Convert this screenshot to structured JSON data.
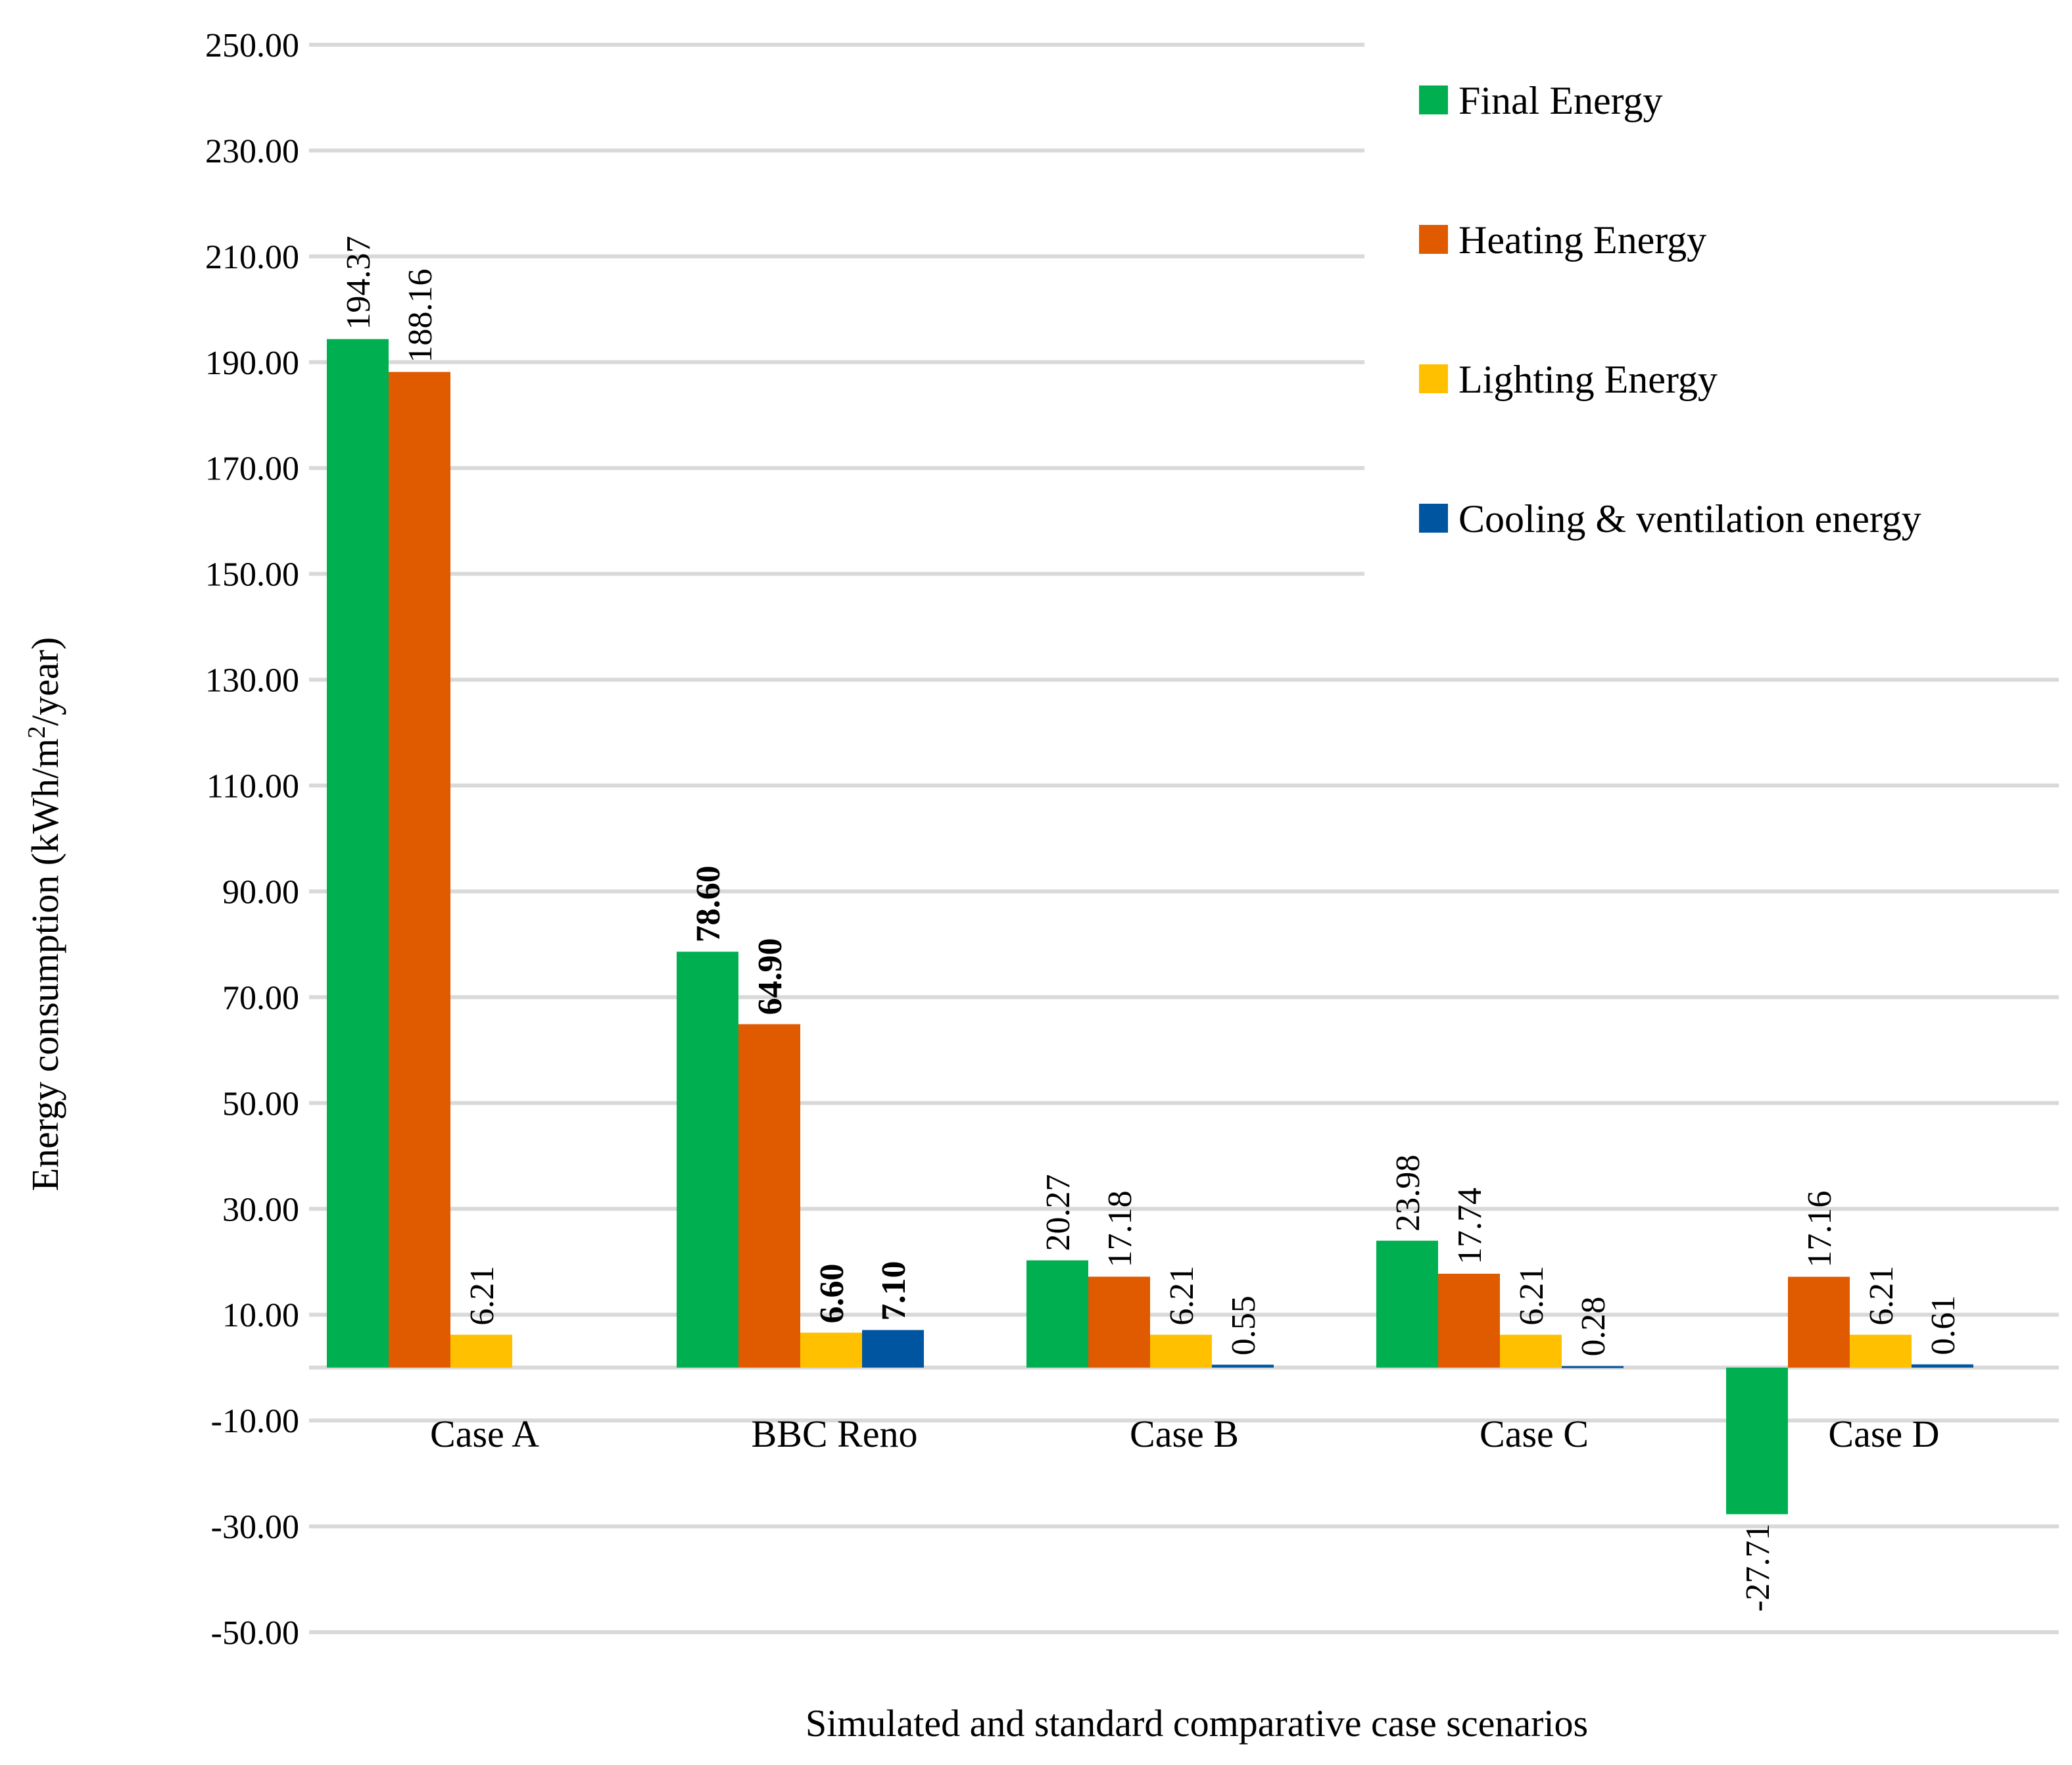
{
  "chart_data": {
    "type": "bar",
    "title": "",
    "xlabel": "Simulated and standard comparative  case scenarios",
    "ylabel_parts": [
      "Energy consumption (kWh/m",
      "2",
      "/year)"
    ],
    "ylim": [
      -50,
      250
    ],
    "yticks": [
      250,
      230,
      210,
      190,
      170,
      150,
      130,
      110,
      90,
      70,
      50,
      30,
      10,
      -10,
      -30,
      -50
    ],
    "ytick_labels": [
      "250.00",
      "230.00",
      "210.00",
      "190.00",
      "170.00",
      "150.00",
      "130.00",
      "110.00",
      "90.00",
      "70.00",
      "50.00",
      "30.00",
      "10.00",
      "-10.00",
      "-30.00",
      "-50.00"
    ],
    "grid": true,
    "legend_position": "top-right",
    "categories": [
      "Case A",
      "BBC Reno",
      "Case B",
      "Case C",
      "Case D"
    ],
    "series": [
      {
        "name": "Final Energy",
        "color": "#00b050",
        "values": [
          194.37,
          78.6,
          20.27,
          23.98,
          -27.71
        ],
        "labels": [
          "194.37",
          "78.60",
          "20.27",
          "23.98",
          "-27.71"
        ]
      },
      {
        "name": "Heating Energy",
        "color": "#e05a00",
        "values": [
          188.16,
          64.9,
          17.18,
          17.74,
          17.16
        ],
        "labels": [
          "188.16",
          "64.90",
          "17.18",
          "17.74",
          "17.16"
        ]
      },
      {
        "name": "Lighting Energy",
        "color": "#ffc000",
        "values": [
          6.21,
          6.6,
          6.21,
          6.21,
          6.21
        ],
        "labels": [
          "6.21",
          "6.60",
          "6.21",
          "6.21",
          "6.21"
        ]
      },
      {
        "name": "Cooling & ventilation energy",
        "color": "#0055a0",
        "values": [
          null,
          7.1,
          0.55,
          0.28,
          0.61
        ],
        "labels": [
          null,
          "7.10",
          "0.55",
          "0.28",
          "0.61"
        ]
      }
    ],
    "bold_label_category": "BBC Reno"
  }
}
